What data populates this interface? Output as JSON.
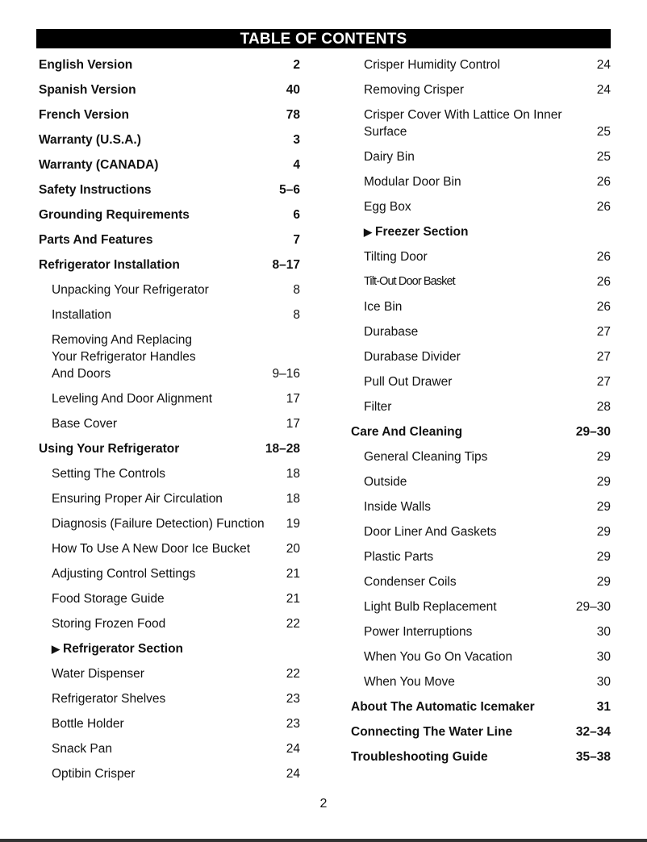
{
  "title": "TABLE OF CONTENTS",
  "left_entries": [
    {
      "text": "English Version",
      "page": "2",
      "style": "bold"
    },
    {
      "text": "Spanish Version",
      "page": "40",
      "style": "bold"
    },
    {
      "text": "French Version",
      "page": "78",
      "style": "bold"
    },
    {
      "text": "Warranty (U.S.A.)",
      "page": "3",
      "style": "bold"
    },
    {
      "text": "Warranty (CANADA)",
      "page": "4",
      "style": "bold"
    },
    {
      "text": "Safety Instructions",
      "page": "5–6",
      "style": "bold"
    },
    {
      "text": "Grounding Requirements",
      "page": "6",
      "style": "bold"
    },
    {
      "text": "Parts And Features",
      "page": "7",
      "style": "bold"
    },
    {
      "text": "Refrigerator Installation",
      "page": "8–17",
      "style": "bold"
    },
    {
      "text": "Unpacking Your Refrigerator",
      "page": "8",
      "style": "sub"
    },
    {
      "text": "Installation",
      "page": "8",
      "style": "sub"
    },
    {
      "text": "Removing And Replacing\nYour Refrigerator Handles\nAnd Doors",
      "page": "9–16",
      "style": "sub"
    },
    {
      "text": "Leveling And Door Alignment",
      "page": "17",
      "style": "sub"
    },
    {
      "text": "Base Cover",
      "page": "17",
      "style": "sub"
    },
    {
      "text": "Using Your Refrigerator",
      "page": "18–28",
      "style": "bold"
    },
    {
      "text": "Setting The Controls",
      "page": "18",
      "style": "sub"
    },
    {
      "text": "Ensuring Proper Air Circulation",
      "page": "18",
      "style": "sub"
    },
    {
      "text": "Diagnosis (Failure Detection) Function",
      "page": "19",
      "style": "sub"
    },
    {
      "text": "How To Use A New Door Ice Bucket",
      "page": "20",
      "style": "sub"
    },
    {
      "text": "Adjusting Control Settings",
      "page": "21",
      "style": "sub"
    },
    {
      "text": "Food Storage Guide",
      "page": "21",
      "style": "sub"
    },
    {
      "text": "Storing Frozen Food",
      "page": "22",
      "style": "sub"
    },
    {
      "text": "Refrigerator Section",
      "page": "",
      "style": "section"
    },
    {
      "text": "Water Dispenser",
      "page": "22",
      "style": "sub"
    },
    {
      "text": "Refrigerator Shelves",
      "page": "23",
      "style": "sub"
    },
    {
      "text": "Bottle Holder",
      "page": "23",
      "style": "sub"
    },
    {
      "text": "Snack Pan",
      "page": "24",
      "style": "sub"
    },
    {
      "text": "Optibin Crisper",
      "page": "24",
      "style": "sub"
    }
  ],
  "right_entries": [
    {
      "text": "Crisper Humidity Control",
      "page": "24",
      "style": "sub"
    },
    {
      "text": "Removing Crisper",
      "page": "24",
      "style": "sub"
    },
    {
      "text": "Crisper Cover With Lattice On Inner\nSurface",
      "page": "25",
      "style": "sub"
    },
    {
      "text": "Dairy Bin",
      "page": "25",
      "style": "sub"
    },
    {
      "text": "Modular Door Bin",
      "page": "26",
      "style": "sub"
    },
    {
      "text": "Egg Box",
      "page": "26",
      "style": "sub"
    },
    {
      "text": "Freezer Section",
      "page": "",
      "style": "section"
    },
    {
      "text": "Tilting Door",
      "page": "26",
      "style": "sub"
    },
    {
      "text": "Tilt-Out Door Basket",
      "page": "26",
      "style": "sub cond"
    },
    {
      "text": "Ice Bin",
      "page": "26",
      "style": "sub"
    },
    {
      "text": "Durabase",
      "page": "27",
      "style": "sub"
    },
    {
      "text": "Durabase Divider",
      "page": "27",
      "style": "sub"
    },
    {
      "text": "Pull Out Drawer",
      "page": "27",
      "style": "sub"
    },
    {
      "text": "Filter",
      "page": "28",
      "style": "sub"
    },
    {
      "text": "Care And Cleaning",
      "page": "29–30",
      "style": "bold"
    },
    {
      "text": "General Cleaning Tips",
      "page": "29",
      "style": "sub"
    },
    {
      "text": "Outside",
      "page": "29",
      "style": "sub"
    },
    {
      "text": "Inside Walls",
      "page": "29",
      "style": "sub"
    },
    {
      "text": "Door Liner And Gaskets",
      "page": "29",
      "style": "sub"
    },
    {
      "text": "Plastic Parts",
      "page": "29",
      "style": "sub"
    },
    {
      "text": "Condenser Coils",
      "page": "29",
      "style": "sub"
    },
    {
      "text": "Light Bulb Replacement",
      "page": "29–30",
      "style": "sub"
    },
    {
      "text": "Power Interruptions",
      "page": "30",
      "style": "sub"
    },
    {
      "text": "When You Go On Vacation",
      "page": "30",
      "style": "sub"
    },
    {
      "text": "When You Move",
      "page": "30",
      "style": "sub"
    },
    {
      "text": "About The Automatic Icemaker",
      "page": "31",
      "style": "bold"
    },
    {
      "text": "Connecting The Water Line",
      "page": "32–34",
      "style": "bold"
    },
    {
      "text": "Troubleshooting Guide",
      "page": "35–38",
      "style": "bold"
    }
  ],
  "page_number": "2",
  "icons": {
    "section_marker": "triangle-right-icon"
  }
}
